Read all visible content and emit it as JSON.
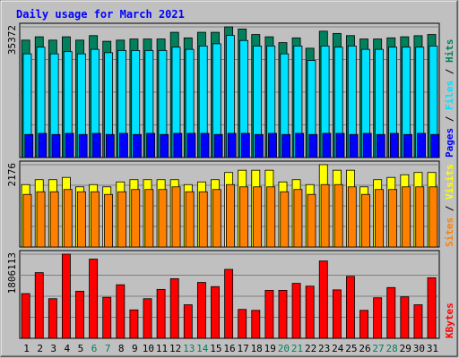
{
  "chart_data": {
    "type": "bar",
    "title": "Daily usage for March 2021",
    "categories": [
      "1",
      "2",
      "3",
      "4",
      "5",
      "6",
      "7",
      "8",
      "9",
      "10",
      "11",
      "12",
      "13",
      "14",
      "15",
      "16",
      "17",
      "18",
      "19",
      "20",
      "21",
      "22",
      "23",
      "24",
      "25",
      "26",
      "27",
      "28",
      "29",
      "30",
      "31"
    ],
    "weekend_days": [
      "6",
      "7",
      "13",
      "14",
      "20",
      "21",
      "27",
      "28"
    ],
    "panels": [
      {
        "name": "requests",
        "ymax_label": "35372",
        "ymax": 35372,
        "legend": [
          "Pages",
          "Files",
          "Hits"
        ],
        "series": [
          {
            "name": "Hits",
            "color": "#00805c",
            "values": [
              31780,
              32680,
              31780,
              32680,
              31780,
              33000,
              31470,
              31780,
              32090,
              32090,
              32090,
              33900,
              32390,
              33900,
              33900,
              35372,
              34790,
              33300,
              32680,
              31100,
              32390,
              29590,
              34200,
              33590,
              33000,
              32090,
              32090,
              32390,
              32680,
              32980,
              33300
            ]
          },
          {
            "name": "Files",
            "color": "#00e0ff",
            "values": [
              28070,
              29870,
              28070,
              28670,
              28070,
              29280,
              28380,
              28980,
              28980,
              28980,
              28980,
              29870,
              29280,
              30190,
              30790,
              33040,
              31680,
              30190,
              30190,
              28070,
              30190,
              26280,
              30190,
              29870,
              30190,
              29280,
              29280,
              29870,
              29870,
              29870,
              30190
            ]
          },
          {
            "name": "Pages",
            "color": "#0000ff",
            "values": [
              6240,
              6540,
              6240,
              6540,
              6240,
              6540,
              6240,
              6540,
              6240,
              6540,
              6240,
              6540,
              6540,
              6540,
              6240,
              6540,
              6540,
              6240,
              6540,
              6240,
              6540,
              6240,
              6540,
              6540,
              6240,
              6540,
              6240,
              6540,
              6240,
              6540,
              6240
            ]
          }
        ]
      },
      {
        "name": "visits",
        "ymax_label": "2176",
        "ymax": 2176,
        "legend": [
          "Sites",
          "Visits"
        ],
        "series": [
          {
            "name": "Visits",
            "color": "#ffff00",
            "values": [
              1650,
              1780,
              1780,
              1840,
              1590,
              1650,
              1590,
              1720,
              1780,
              1780,
              1780,
              1780,
              1650,
              1720,
              1780,
              1970,
              2030,
              2030,
              2030,
              1720,
              1780,
              1650,
              2176,
              2030,
              2030,
              1590,
              1780,
              1840,
              1910,
              1970,
              1970
            ]
          },
          {
            "name": "Sites",
            "color": "#ff8000",
            "values": [
              1390,
              1460,
              1460,
              1520,
              1460,
              1460,
              1390,
              1460,
              1520,
              1520,
              1520,
              1590,
              1460,
              1460,
              1520,
              1650,
              1590,
              1590,
              1590,
              1460,
              1520,
              1390,
              1650,
              1650,
              1590,
              1390,
              1520,
              1520,
              1590,
              1590,
              1590
            ]
          }
        ]
      },
      {
        "name": "kbytes",
        "ymax_label": "1806113",
        "ymax": 1806113,
        "legend": [
          "KBytes"
        ],
        "series": [
          {
            "name": "KBytes",
            "color": "#ff0000",
            "values": [
              960000,
              1410000,
              850000,
              1806113,
              1010000,
              1700000,
              880000,
              1150000,
              610000,
              850000,
              1050000,
              1280000,
              720000,
              1200000,
              1110000,
              1480000,
              620000,
              600000,
              1030000,
              1030000,
              1180000,
              1120000,
              1660000,
              1040000,
              1330000,
              600000,
              870000,
              1090000,
              890000,
              720000,
              1300000
            ]
          }
        ]
      }
    ]
  },
  "colors": {
    "background": "#c0c0c0",
    "title": "#0000ff",
    "weekday_label": "#000000",
    "weekend_label": "#00805c",
    "legend_slash": "#000000"
  }
}
